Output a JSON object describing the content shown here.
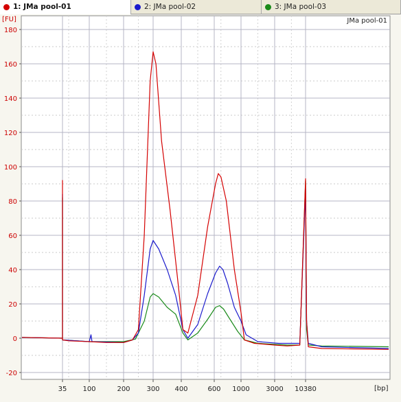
{
  "tabs": [
    {
      "label": "1: JMa pool-01",
      "color": "#d40000",
      "active": true
    },
    {
      "label": "2: JMa pool-02",
      "color": "#1a1acc",
      "active": false
    },
    {
      "label": "3: JMa pool-03",
      "color": "#1a8a1a",
      "active": false
    }
  ],
  "chart_data": {
    "type": "line",
    "title": "JMa pool-01",
    "ylabel": "[FU]",
    "xlabel": "[bp]",
    "xscale": "log (electropherogram size axis)",
    "ylim": [
      -24,
      188
    ],
    "yticks": [
      -20,
      0,
      20,
      40,
      60,
      80,
      100,
      120,
      140,
      160,
      180
    ],
    "xticks": [
      "35",
      "100",
      "200",
      "300",
      "400",
      "600",
      "1000",
      "3000",
      "10380"
    ],
    "grid": true,
    "legend": "tabs-top",
    "series": [
      {
        "name": "1: JMa pool-01",
        "color": "#d40000",
        "points": [
          [
            "15",
            0.5
          ],
          [
            "35",
            0
          ],
          [
            "35",
            92
          ],
          [
            "35",
            -1
          ],
          [
            "50",
            -1.5
          ],
          [
            "100",
            -2
          ],
          [
            "150",
            -2.5
          ],
          [
            "200",
            -2.5
          ],
          [
            "230",
            -1
          ],
          [
            "250",
            5
          ],
          [
            "270",
            60
          ],
          [
            "290",
            150
          ],
          [
            "300",
            167
          ],
          [
            "310",
            160
          ],
          [
            "330",
            115
          ],
          [
            "360",
            75
          ],
          [
            "390",
            30
          ],
          [
            "410",
            5
          ],
          [
            "440",
            3
          ],
          [
            "500",
            25
          ],
          [
            "560",
            65
          ],
          [
            "620",
            90
          ],
          [
            "660",
            96
          ],
          [
            "700",
            94
          ],
          [
            "780",
            80
          ],
          [
            "900",
            40
          ],
          [
            "1000",
            15
          ],
          [
            "1200",
            -1
          ],
          [
            "1800",
            -3
          ],
          [
            "3000",
            -4
          ],
          [
            "6000",
            -4.5
          ],
          [
            "9000",
            -4
          ],
          [
            "10380",
            93
          ],
          [
            "11000",
            10
          ],
          [
            "12000",
            -5
          ],
          [
            "20000",
            -6
          ],
          [
            "60000",
            -6.5
          ]
        ]
      },
      {
        "name": "2: JMa pool-02",
        "color": "#1a1acc",
        "points": [
          [
            "15",
            0.5
          ],
          [
            "35",
            0
          ],
          [
            "35",
            84
          ],
          [
            "35",
            -1
          ],
          [
            "100",
            -2
          ],
          [
            "105",
            2
          ],
          [
            "108",
            -2
          ],
          [
            "200",
            -2.5
          ],
          [
            "230",
            -1
          ],
          [
            "250",
            3
          ],
          [
            "270",
            25
          ],
          [
            "290",
            52
          ],
          [
            "300",
            57
          ],
          [
            "320",
            52
          ],
          [
            "350",
            40
          ],
          [
            "380",
            25
          ],
          [
            "410",
            5
          ],
          [
            "440",
            0
          ],
          [
            "500",
            8
          ],
          [
            "560",
            26
          ],
          [
            "620",
            38
          ],
          [
            "680",
            42
          ],
          [
            "730",
            40
          ],
          [
            "800",
            32
          ],
          [
            "900",
            18
          ],
          [
            "1000",
            10
          ],
          [
            "1300",
            2
          ],
          [
            "2000",
            -2
          ],
          [
            "4000",
            -3
          ],
          [
            "9000",
            -3
          ],
          [
            "10380",
            87
          ],
          [
            "11000",
            10
          ],
          [
            "12000",
            -3
          ],
          [
            "20000",
            -5
          ],
          [
            "60000",
            -6
          ]
        ]
      },
      {
        "name": "3: JMa pool-03",
        "color": "#1a8a1a",
        "points": [
          [
            "15",
            0.5
          ],
          [
            "35",
            0
          ],
          [
            "35",
            82
          ],
          [
            "35",
            -1
          ],
          [
            "100",
            -2
          ],
          [
            "200",
            -2
          ],
          [
            "240",
            -0.5
          ],
          [
            "270",
            10
          ],
          [
            "290",
            24
          ],
          [
            "300",
            26
          ],
          [
            "320",
            24
          ],
          [
            "350",
            18
          ],
          [
            "380",
            14
          ],
          [
            "410",
            3
          ],
          [
            "440",
            -1
          ],
          [
            "500",
            3
          ],
          [
            "560",
            11
          ],
          [
            "620",
            18
          ],
          [
            "680",
            19
          ],
          [
            "740",
            17
          ],
          [
            "820",
            12
          ],
          [
            "950",
            4
          ],
          [
            "1200",
            -1
          ],
          [
            "2000",
            -3
          ],
          [
            "6000",
            -4
          ],
          [
            "9000",
            -4
          ],
          [
            "10380",
            92
          ],
          [
            "11000",
            5
          ],
          [
            "12000",
            -4
          ],
          [
            "20000",
            -4.5
          ],
          [
            "60000",
            -5
          ]
        ]
      }
    ]
  }
}
